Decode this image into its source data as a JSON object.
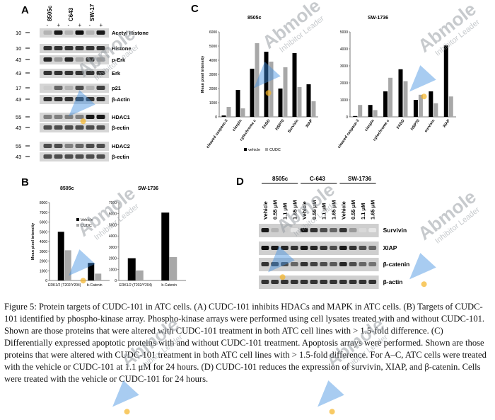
{
  "figure": {
    "panelA": {
      "label": "A",
      "cell_lines": [
        "8505c",
        "C643",
        "SW-17"
      ],
      "treatment_marks": [
        "-",
        "+",
        "-",
        "+",
        "-",
        "+"
      ],
      "rows": [
        {
          "kda": "10",
          "protein": "Acetyl Histone"
        },
        {
          "kda": "10",
          "protein": "Histone"
        },
        {
          "kda": "43",
          "protein": "p-Erk"
        },
        {
          "kda": "43",
          "protein": "Erk"
        },
        {
          "kda": "17",
          "protein": "p21"
        },
        {
          "kda": "43",
          "protein": "β-Actin"
        },
        {
          "kda": "55",
          "protein": "HDAC1"
        },
        {
          "kda": "43",
          "protein": "β-ectin"
        },
        {
          "kda": "55",
          "protein": "HDAC2"
        },
        {
          "kda": "43",
          "protein": "β-ectin"
        }
      ]
    },
    "panelB": {
      "label": "B",
      "chart_data": [
        {
          "type": "bar",
          "title": "8505c",
          "ylabel": "Mean pixel intensity",
          "categories": [
            "ERK1/2 (T202/Y204)",
            "b-Catenin"
          ],
          "ylim": [
            0,
            8000
          ],
          "yticks": [
            "0",
            "1000",
            "2000",
            "3000",
            "4000",
            "5000",
            "6000",
            "7000",
            "8000"
          ],
          "legend": [
            "Vehicle",
            "CUDC"
          ],
          "series": [
            {
              "name": "Vehicle",
              "color": "#000000",
              "values": [
                5000,
                1800
              ]
            },
            {
              "name": "CUDC",
              "color": "#a8a8a8",
              "values": [
                3100,
                700
              ]
            }
          ]
        },
        {
          "type": "bar",
          "title": "SW-1736",
          "categories": [
            "ERK1/2 (T202/Y204)",
            "b-Catenin"
          ],
          "ylim": [
            0,
            7000
          ],
          "yticks": [
            "0",
            "1000",
            "2000",
            "3000",
            "4000",
            "5000",
            "6000",
            "7000"
          ],
          "series": [
            {
              "name": "Vehicle",
              "color": "#000000",
              "values": [
                2000,
                6100
              ]
            },
            {
              "name": "CUDC",
              "color": "#a8a8a8",
              "values": [
                900,
                2100
              ]
            }
          ]
        }
      ]
    },
    "panelC": {
      "label": "C",
      "chart_data": [
        {
          "type": "bar",
          "title": "8505c",
          "ylabel": "Mean pixel intensity",
          "categories": [
            "cleaved caspase-3",
            "claspin",
            "cytochrome c",
            "FADD",
            "HSP70",
            "Survivin",
            "XIAP"
          ],
          "ylim": [
            0,
            6000
          ],
          "yticks": [
            "0",
            "1000",
            "2000",
            "3000",
            "4000",
            "5000",
            "6000"
          ],
          "legend": [
            "vehicle",
            "CUDC"
          ],
          "series": [
            {
              "name": "vehicle",
              "color": "#000000",
              "values": [
                100,
                1900,
                3400,
                4600,
                2000,
                4500,
                2300
              ]
            },
            {
              "name": "CUDC",
              "color": "#a8a8a8",
              "values": [
                700,
                600,
                5200,
                3900,
                3500,
                2100,
                1100
              ]
            }
          ]
        },
        {
          "type": "bar",
          "title": "SW-1736",
          "categories": [
            "cleaved caspase-3",
            "claspin",
            "cytochrome c",
            "FADD",
            "HSP70",
            "survivin",
            "XIAP"
          ],
          "ylim": [
            0,
            5000
          ],
          "yticks": [
            "0",
            "1000",
            "2000",
            "3000",
            "4000",
            "5000"
          ],
          "series": [
            {
              "name": "vehicle",
              "color": "#000000",
              "values": [
                50,
                700,
                1500,
                2800,
                1000,
                1500,
                4200
              ]
            },
            {
              "name": "CUDC",
              "color": "#a8a8a8",
              "values": [
                700,
                400,
                2300,
                2100,
                1300,
                800,
                1200
              ]
            }
          ]
        }
      ]
    },
    "panelD": {
      "label": "D",
      "cell_lines": [
        "8505c",
        "C-643",
        "SW-1736"
      ],
      "lanes": [
        "Vehicle",
        "0.55 μM",
        "1.1 μM",
        "1.65 μM",
        "Vehicle",
        "0.55 μM",
        "1.1 μM",
        "1.65 μM",
        "Vehicle",
        "0.55 μM",
        "1.1 μM",
        "1.65 μM"
      ],
      "blots": [
        "Survivin",
        "XIAP",
        "β-catenin",
        "β-actin"
      ]
    },
    "caption": "Figure 5: Protein targets of CUDC-101 in ATC cells. (A) CUDC-101 inhibits HDACs and MAPK in ATC cells. (B) Targets of CUDC-101 identified by phospho-kinase array. Phospho-kinase arrays were performed using cell lysates treated with and without CUDC-101. Shown are those proteins that were altered with CUDC-101 treatment in both ATC cell lines with > 1.5-fold difference. (C) Differentially expressed apoptotic proteins with and without CUDC-101 treatment. Apoptosis arrays were performed. Shown are those proteins that were altered with CUDC-101 treatment in both ATC cell lines with > 1.5-fold difference. For A–C, ATC cells were treated with the vehicle or CUDC-101 at 1.1 μM for 24 hours. (D) CUDC-101 reduces the expression of survivin, XIAP, and β-catenin. Cells were treated with the vehicle or CUDC-101 for 24 hours."
  },
  "watermark": {
    "brand": "Abmole",
    "tagline": "Inhibitor Leader",
    "colors": {
      "arrow": "#3d8fe0",
      "dot": "#f5b324"
    }
  }
}
